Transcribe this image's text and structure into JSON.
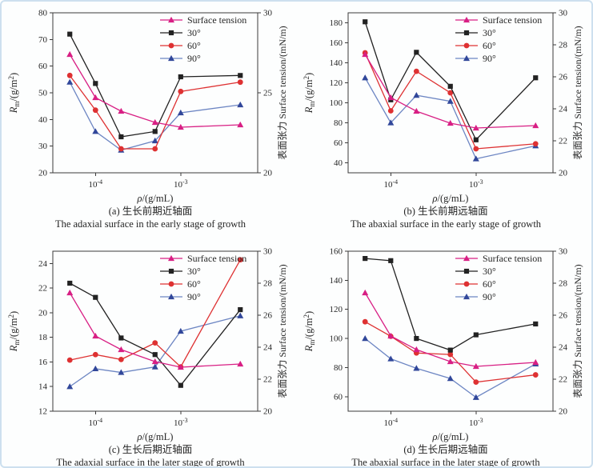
{
  "figure": {
    "background": "#fdfefe",
    "border_color": "#cde0ef",
    "axis_color": "#3a3a3a",
    "text_color": "#262626"
  },
  "legend": {
    "position": "inside-top-right",
    "items": [
      {
        "key": "surface_tension",
        "label": "Surface tension",
        "color": "#d81f84",
        "marker": "triangle",
        "axis": "right"
      },
      {
        "key": "deg30",
        "label": "30°",
        "color": "#222222",
        "marker": "square",
        "axis": "left"
      },
      {
        "key": "deg60",
        "label": "60°",
        "color": "#de3132",
        "marker": "circle",
        "axis": "left"
      },
      {
        "key": "deg90",
        "label": "90°",
        "color": "#6d86c3",
        "marker": "triangle",
        "axis": "left",
        "marker_color": "#31479a"
      }
    ]
  },
  "chart_data": [
    {
      "id": "a",
      "type": "line",
      "caption_zh": "(a) 生长前期近轴面",
      "caption_en": "The adaxial surface in the early stage of growth",
      "xlabel": "ρ/(g/mL)",
      "ylabel_left": "R_{m}/(g/m^{2})",
      "ylabel_right": "表面张力 Surface tension/(mN/m)",
      "xscale": "log",
      "x": [
        5e-05,
        0.0001,
        0.0002,
        0.0005,
        0.001,
        0.005
      ],
      "xlim": [
        3.16e-05,
        0.008
      ],
      "xticks": [
        0.0001,
        0.001
      ],
      "xtick_labels": [
        "10^{-4}",
        "10^{-3}"
      ],
      "ylim_left": [
        20,
        80
      ],
      "yticks_left": [
        20,
        30,
        40,
        50,
        60,
        70,
        80
      ],
      "ylim_right": [
        20,
        30
      ],
      "yticks_right": [
        20,
        25,
        30
      ],
      "series": {
        "surface_tension": [
          27.4,
          24.7,
          23.85,
          23.15,
          22.85,
          23.0
        ],
        "deg30": [
          72,
          53.5,
          33.5,
          35.5,
          56,
          56.5
        ],
        "deg60": [
          56.5,
          43.5,
          29,
          29,
          50.5,
          54
        ],
        "deg90": [
          54,
          35.5,
          28.5,
          32,
          42.5,
          45.5
        ]
      }
    },
    {
      "id": "b",
      "type": "line",
      "caption_zh": "(b) 生长前期远轴面",
      "caption_en": "The abaxial surface in the early stage of growth",
      "xlabel": "ρ/(g/mL)",
      "ylabel_left": "R_{m}/(g/m^{2})",
      "ylabel_right": "表面张力 Surface tension/(mN/m)",
      "xscale": "log",
      "x": [
        5e-05,
        0.0001,
        0.0002,
        0.0005,
        0.001,
        0.005
      ],
      "xlim": [
        3.16e-05,
        0.008
      ],
      "xticks": [
        0.0001,
        0.001
      ],
      "xtick_labels": [
        "10^{-4}",
        "10^{-3}"
      ],
      "ylim_left": [
        30,
        190
      ],
      "yticks_left": [
        40,
        60,
        80,
        100,
        120,
        140,
        160,
        180
      ],
      "ylim_right": [
        20,
        30
      ],
      "yticks_right": [
        20,
        22,
        24,
        26,
        28,
        30
      ],
      "series": {
        "surface_tension": [
          27.4,
          24.7,
          23.85,
          23.1,
          22.8,
          22.95
        ],
        "deg30": [
          181,
          103,
          150.5,
          116.5,
          63,
          125
        ],
        "deg60": [
          150,
          92,
          131.5,
          110,
          54,
          59
        ],
        "deg90": [
          125,
          80,
          107.5,
          101.5,
          44,
          57
        ]
      }
    },
    {
      "id": "c",
      "type": "line",
      "caption_zh": "(c) 生长后期近轴面",
      "caption_en": "The adaxial surface in the later stage of growth",
      "xlabel": "ρ/(g/mL)",
      "ylabel_left": "R_{m}/(g/m^{2})",
      "ylabel_right": "表面张力 Surface tension/(mN/m)",
      "xscale": "log",
      "x": [
        5e-05,
        0.0001,
        0.0002,
        0.0005,
        0.001,
        0.005
      ],
      "xlim": [
        3.16e-05,
        0.008
      ],
      "xticks": [
        0.0001,
        0.001
      ],
      "xtick_labels": [
        "10^{-4}",
        "10^{-3}"
      ],
      "ylim_left": [
        12,
        25
      ],
      "yticks_left": [
        12,
        14,
        16,
        18,
        20,
        22,
        24
      ],
      "ylim_right": [
        20,
        30
      ],
      "yticks_right": [
        20,
        22,
        24,
        26,
        28,
        30
      ],
      "series": {
        "surface_tension": [
          27.4,
          24.7,
          23.85,
          23.1,
          22.75,
          22.95
        ],
        "deg30": [
          22.4,
          21.25,
          17.95,
          16.6,
          14.1,
          20.25
        ],
        "deg60": [
          16.15,
          16.6,
          16.2,
          17.55,
          15.6,
          24.3
        ],
        "deg90": [
          14.0,
          15.45,
          15.15,
          15.6,
          18.5,
          19.75
        ]
      }
    },
    {
      "id": "d",
      "type": "line",
      "caption_zh": "(d) 生长后期远轴面",
      "caption_en": "The abaxial surface in the later stage of growth",
      "xlabel": "ρ/(g/mL)",
      "ylabel_left": "R_{m}/(g/m^{2})",
      "ylabel_right": "表面张力 Surface tension/(mN/m)",
      "xscale": "log",
      "x": [
        5e-05,
        0.0001,
        0.0002,
        0.0005,
        0.001,
        0.005
      ],
      "xlim": [
        3.16e-05,
        0.008
      ],
      "xticks": [
        0.0001,
        0.001
      ],
      "xtick_labels": [
        "10^{-4}",
        "10^{-3}"
      ],
      "ylim_left": [
        50,
        160
      ],
      "yticks_left": [
        60,
        80,
        100,
        120,
        140,
        160
      ],
      "ylim_right": [
        20,
        30
      ],
      "yticks_right": [
        20,
        22,
        24,
        26,
        28,
        30
      ],
      "series": {
        "surface_tension": [
          27.4,
          24.7,
          23.85,
          23.1,
          22.8,
          23.05
        ],
        "deg30": [
          155,
          153.5,
          100,
          92,
          102.5,
          110
        ],
        "deg60": [
          111.5,
          101.5,
          90,
          89,
          70,
          75
        ],
        "deg90": [
          100,
          86,
          79.5,
          72.5,
          59.5,
          82.5
        ]
      }
    }
  ]
}
